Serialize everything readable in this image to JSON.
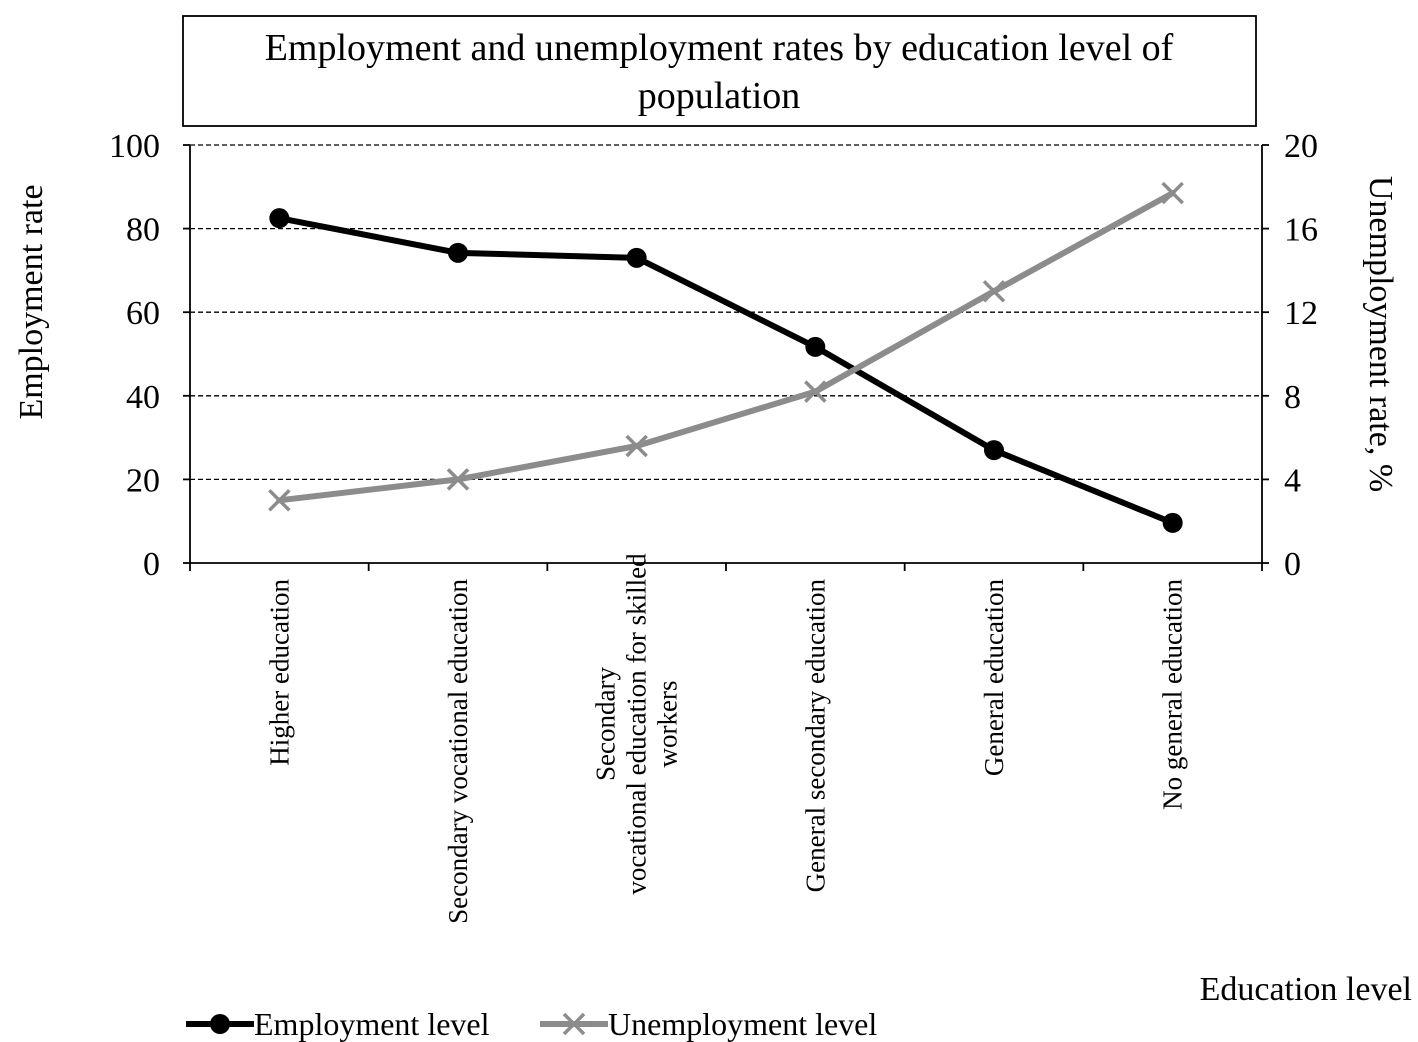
{
  "chart_data": {
    "type": "line",
    "title": "Employment and unemployment rates by education level of population",
    "title_lines": [
      "Employment and unemployment rates by education level of",
      "population"
    ],
    "xlabel": "Education level",
    "ylabel_left": "Employment rate",
    "ylabel_right": "Unemployment rate, %",
    "categories": [
      "Higher education",
      "Secondary vocational education",
      "Secondary vocational education for skilled workers",
      "General secondary education",
      "General education",
      "No general education"
    ],
    "category_label_lines": [
      [
        "Higher education"
      ],
      [
        "Secondary vocational education"
      ],
      [
        "Secondary",
        "vocational education for skilled",
        "workers"
      ],
      [
        "General secondary education"
      ],
      [
        "General education"
      ],
      [
        "No general education"
      ]
    ],
    "ylim_left": [
      0,
      100
    ],
    "yticks_left": [
      0,
      20,
      40,
      60,
      80,
      100
    ],
    "ylim_right": [
      0,
      20
    ],
    "yticks_right": [
      0,
      4,
      8,
      12,
      16,
      20
    ],
    "grid": true,
    "legend_position": "bottom-left",
    "series": [
      {
        "name": "Employment level",
        "axis": "left",
        "marker": "circle",
        "color": "#000000",
        "values": [
          82.5,
          74.2,
          73,
          51.7,
          27,
          9.6
        ]
      },
      {
        "name": "Unemployment level",
        "axis": "right",
        "marker": "x",
        "color": "#8c8c8c",
        "values": [
          3,
          4,
          5.6,
          8.2,
          13,
          17.7
        ]
      }
    ]
  }
}
